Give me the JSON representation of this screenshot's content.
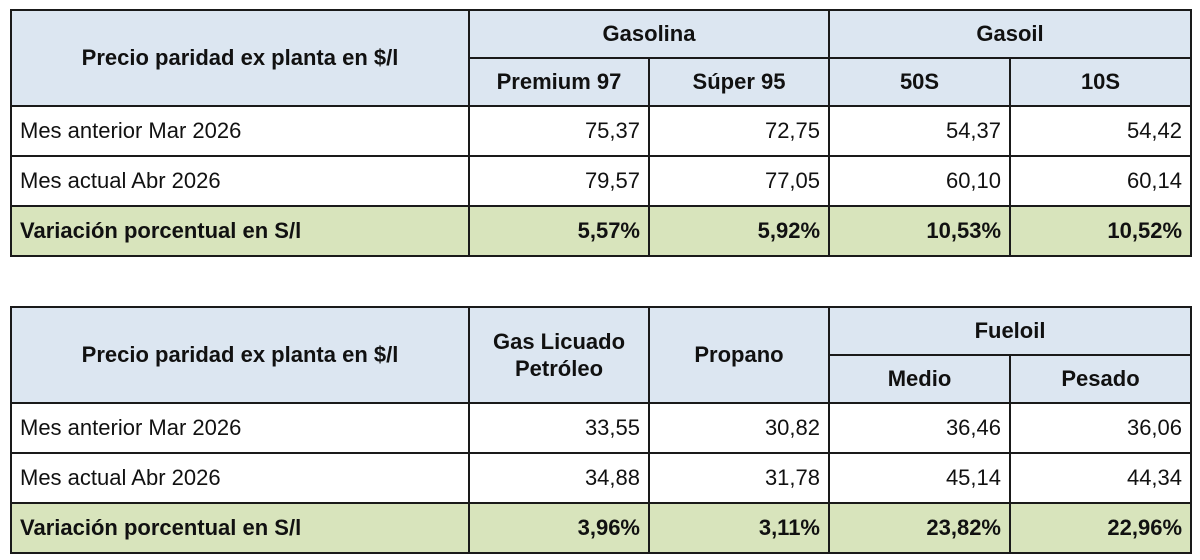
{
  "table1": {
    "header": {
      "corner": "Precio paridad ex planta en $/l",
      "group_gasolina": "Gasolina",
      "group_gasoil": "Gasoil",
      "sub": [
        "Premium 97",
        "Súper 95",
        "50S",
        "10S"
      ]
    },
    "rows": [
      {
        "label": "Mes anterior Mar 2026",
        "values": [
          "75,37",
          "72,75",
          "54,37",
          "54,42"
        ]
      },
      {
        "label": "Mes actual Abr 2026",
        "values": [
          "79,57",
          "77,05",
          "60,10",
          "60,14"
        ]
      },
      {
        "label": "Variación porcentual en S/l",
        "values": [
          "5,57%",
          "5,92%",
          "10,53%",
          "10,52%"
        ]
      }
    ]
  },
  "table2": {
    "header": {
      "corner": "Precio paridad ex planta en $/l",
      "glp": "Gas Licuado Petróleo",
      "propano": "Propano",
      "group_fueloil": "Fueloil",
      "sub": [
        "Medio",
        "Pesado"
      ]
    },
    "rows": [
      {
        "label": "Mes anterior Mar 2026",
        "values": [
          "33,55",
          "30,82",
          "36,46",
          "36,06"
        ]
      },
      {
        "label": "Mes actual Abr 2026",
        "values": [
          "34,88",
          "31,78",
          "45,14",
          "44,34"
        ]
      },
      {
        "label": "Variación porcentual en S/l",
        "values": [
          "3,96%",
          "3,11%",
          "23,82%",
          "22,96%"
        ]
      }
    ]
  }
}
